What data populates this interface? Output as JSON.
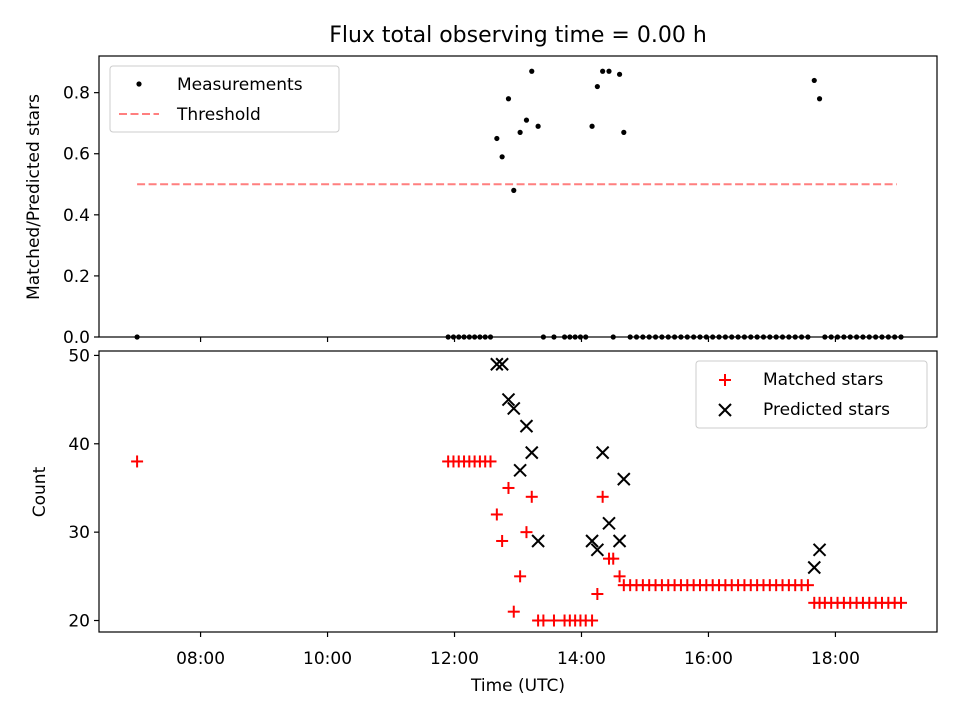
{
  "chart_data": [
    {
      "type": "scatter",
      "title": "Flux total observing time = 0.00 h",
      "xlabel": "",
      "ylabel": "Matched/Predicted stars",
      "xlim": [
        "06:24",
        "19:36"
      ],
      "ylim": [
        0,
        0.92
      ],
      "yticks": [
        0.0,
        0.2,
        0.4,
        0.6,
        0.8
      ],
      "ytick_labels": [
        "0.0",
        "0.2",
        "0.4",
        "0.6",
        "0.8"
      ],
      "grid": false,
      "legend": "top-left",
      "series": [
        {
          "name": "Measurements",
          "marker": "dot",
          "color": "#000000",
          "points": [
            [
              "07:00",
              0
            ],
            [
              "11:54",
              0
            ],
            [
              "11:59",
              0
            ],
            [
              "12:04",
              0
            ],
            [
              "12:09",
              0
            ],
            [
              "12:14",
              0
            ],
            [
              "12:19",
              0
            ],
            [
              "12:24",
              0
            ],
            [
              "12:29",
              0
            ],
            [
              "12:34",
              0
            ],
            [
              "12:40",
              0.65
            ],
            [
              "12:45",
              0.59
            ],
            [
              "12:51",
              0.78
            ],
            [
              "12:56",
              0.48
            ],
            [
              "13:02",
              0.67
            ],
            [
              "13:08",
              0.71
            ],
            [
              "13:13",
              0.87
            ],
            [
              "13:19",
              0.69
            ],
            [
              "13:24",
              0
            ],
            [
              "13:34",
              0
            ],
            [
              "13:44",
              0
            ],
            [
              "13:49",
              0
            ],
            [
              "13:54",
              0
            ],
            [
              "13:59",
              0
            ],
            [
              "14:04",
              0
            ],
            [
              "14:10",
              0.69
            ],
            [
              "14:15",
              0.82
            ],
            [
              "14:20",
              0.87
            ],
            [
              "14:26",
              0.87
            ],
            [
              "14:30",
              0
            ],
            [
              "14:36",
              0.86
            ],
            [
              "14:40",
              0.67
            ],
            [
              "14:46",
              0
            ],
            [
              "14:52",
              0
            ],
            [
              "14:58",
              0
            ],
            [
              "15:04",
              0
            ],
            [
              "15:10",
              0
            ],
            [
              "15:16",
              0
            ],
            [
              "15:22",
              0
            ],
            [
              "15:28",
              0
            ],
            [
              "15:34",
              0
            ],
            [
              "15:40",
              0
            ],
            [
              "15:46",
              0
            ],
            [
              "15:52",
              0
            ],
            [
              "15:58",
              0
            ],
            [
              "16:04",
              0
            ],
            [
              "16:10",
              0
            ],
            [
              "16:16",
              0
            ],
            [
              "16:22",
              0
            ],
            [
              "16:28",
              0
            ],
            [
              "16:34",
              0
            ],
            [
              "16:40",
              0
            ],
            [
              "16:46",
              0
            ],
            [
              "16:52",
              0
            ],
            [
              "16:58",
              0
            ],
            [
              "17:04",
              0
            ],
            [
              "17:10",
              0
            ],
            [
              "17:16",
              0
            ],
            [
              "17:22",
              0
            ],
            [
              "17:28",
              0
            ],
            [
              "17:34",
              0
            ],
            [
              "17:40",
              0.84
            ],
            [
              "17:45",
              0.78
            ],
            [
              "17:50",
              0
            ],
            [
              "17:56",
              0
            ],
            [
              "18:02",
              0
            ],
            [
              "18:08",
              0
            ],
            [
              "18:14",
              0
            ],
            [
              "18:20",
              0
            ],
            [
              "18:26",
              0
            ],
            [
              "18:32",
              0
            ],
            [
              "18:38",
              0
            ],
            [
              "18:44",
              0
            ],
            [
              "18:50",
              0
            ],
            [
              "18:56",
              0
            ],
            [
              "19:02",
              0
            ]
          ]
        },
        {
          "name": "Threshold",
          "line": "dashed",
          "color": "#ff7f7f",
          "points": [
            [
              "07:00",
              0.5
            ],
            [
              "18:58",
              0.5
            ]
          ]
        }
      ]
    },
    {
      "type": "scatter",
      "title": "",
      "xlabel": "Time (UTC)",
      "ylabel": "Count",
      "xlim": [
        "06:24",
        "19:36"
      ],
      "ylim": [
        18.7,
        50.5
      ],
      "xticks": [
        "08:00",
        "10:00",
        "12:00",
        "14:00",
        "16:00",
        "18:00"
      ],
      "yticks": [
        20,
        30,
        40,
        50
      ],
      "ytick_labels": [
        "20",
        "30",
        "40",
        "50"
      ],
      "grid": false,
      "legend": "top-right",
      "series": [
        {
          "name": "Matched stars",
          "marker": "plus",
          "color": "#ff0000",
          "points": [
            [
              "07:00",
              38
            ],
            [
              "11:54",
              38
            ],
            [
              "11:59",
              38
            ],
            [
              "12:04",
              38
            ],
            [
              "12:09",
              38
            ],
            [
              "12:14",
              38
            ],
            [
              "12:19",
              38
            ],
            [
              "12:24",
              38
            ],
            [
              "12:29",
              38
            ],
            [
              "12:34",
              38
            ],
            [
              "12:40",
              32
            ],
            [
              "12:45",
              29
            ],
            [
              "12:51",
              35
            ],
            [
              "12:56",
              21
            ],
            [
              "13:02",
              25
            ],
            [
              "13:08",
              30
            ],
            [
              "13:13",
              34
            ],
            [
              "13:19",
              20
            ],
            [
              "13:24",
              20
            ],
            [
              "13:34",
              20
            ],
            [
              "13:44",
              20
            ],
            [
              "13:49",
              20
            ],
            [
              "13:54",
              20
            ],
            [
              "13:59",
              20
            ],
            [
              "14:04",
              20
            ],
            [
              "14:10",
              20
            ],
            [
              "14:15",
              23
            ],
            [
              "14:20",
              34
            ],
            [
              "14:26",
              27
            ],
            [
              "14:30",
              27
            ],
            [
              "14:36",
              25
            ],
            [
              "14:40",
              24
            ],
            [
              "14:46",
              24
            ],
            [
              "14:52",
              24
            ],
            [
              "14:58",
              24
            ],
            [
              "15:04",
              24
            ],
            [
              "15:10",
              24
            ],
            [
              "15:16",
              24
            ],
            [
              "15:22",
              24
            ],
            [
              "15:28",
              24
            ],
            [
              "15:34",
              24
            ],
            [
              "15:40",
              24
            ],
            [
              "15:46",
              24
            ],
            [
              "15:52",
              24
            ],
            [
              "15:58",
              24
            ],
            [
              "16:04",
              24
            ],
            [
              "16:10",
              24
            ],
            [
              "16:16",
              24
            ],
            [
              "16:22",
              24
            ],
            [
              "16:28",
              24
            ],
            [
              "16:34",
              24
            ],
            [
              "16:40",
              24
            ],
            [
              "16:46",
              24
            ],
            [
              "16:52",
              24
            ],
            [
              "16:58",
              24
            ],
            [
              "17:04",
              24
            ],
            [
              "17:10",
              24
            ],
            [
              "17:16",
              24
            ],
            [
              "17:22",
              24
            ],
            [
              "17:28",
              24
            ],
            [
              "17:34",
              24
            ],
            [
              "17:40",
              22
            ],
            [
              "17:45",
              22
            ],
            [
              "17:50",
              22
            ],
            [
              "17:56",
              22
            ],
            [
              "18:02",
              22
            ],
            [
              "18:08",
              22
            ],
            [
              "18:14",
              22
            ],
            [
              "18:20",
              22
            ],
            [
              "18:26",
              22
            ],
            [
              "18:32",
              22
            ],
            [
              "18:38",
              22
            ],
            [
              "18:44",
              22
            ],
            [
              "18:50",
              22
            ],
            [
              "18:56",
              22
            ],
            [
              "19:02",
              22
            ]
          ]
        },
        {
          "name": "Predicted stars",
          "marker": "x",
          "color": "#000000",
          "points": [
            [
              "12:40",
              49
            ],
            [
              "12:45",
              49
            ],
            [
              "12:51",
              45
            ],
            [
              "12:56",
              44
            ],
            [
              "13:02",
              37
            ],
            [
              "13:08",
              42
            ],
            [
              "13:13",
              39
            ],
            [
              "13:19",
              29
            ],
            [
              "14:10",
              29
            ],
            [
              "14:15",
              28
            ],
            [
              "14:20",
              39
            ],
            [
              "14:26",
              31
            ],
            [
              "14:36",
              29
            ],
            [
              "14:40",
              36
            ],
            [
              "17:40",
              26
            ],
            [
              "17:45",
              28
            ]
          ]
        }
      ]
    }
  ]
}
